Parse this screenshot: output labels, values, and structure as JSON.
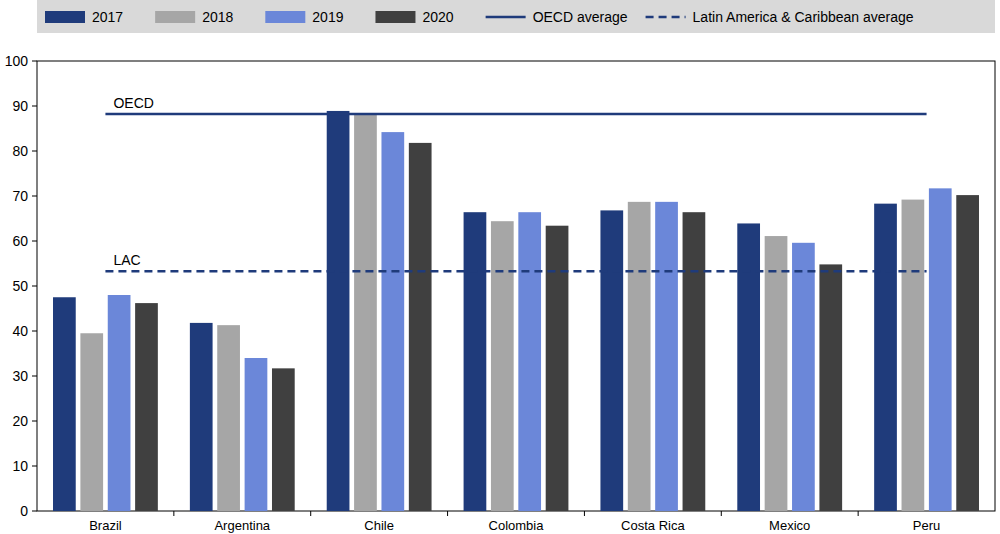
{
  "chart_data": {
    "type": "bar",
    "categories": [
      "Brazil",
      "Argentina",
      "Chile",
      "Colombia",
      "Costa Rica",
      "Mexico",
      "Peru"
    ],
    "series": [
      {
        "name": "2017",
        "color": "#1f3b7b",
        "values": [
          47.5,
          41.8,
          88.9,
          66.4,
          66.8,
          63.9,
          68.3
        ]
      },
      {
        "name": "2018",
        "color": "#a6a6a6",
        "values": [
          39.5,
          41.3,
          88.3,
          64.4,
          68.7,
          61.1,
          69.2
        ]
      },
      {
        "name": "2019",
        "color": "#6b87d9",
        "values": [
          48.0,
          34.0,
          84.2,
          66.4,
          68.7,
          59.6,
          71.7
        ]
      },
      {
        "name": "2020",
        "color": "#404040",
        "values": [
          46.2,
          31.7,
          81.8,
          63.4,
          66.4,
          54.8,
          70.2
        ]
      },
      {
        "name": "OECD average",
        "type": "line",
        "line_style": "solid",
        "color": "#1f3b7b",
        "label": "OECD",
        "values": [
          88.2,
          88.2,
          88.2,
          88.2,
          88.2,
          88.2,
          88.2
        ]
      },
      {
        "name": "Latin America & Caribbean average",
        "type": "line",
        "line_style": "dashed",
        "color": "#1f3b7b",
        "label": "LAC",
        "values": [
          53.3,
          53.3,
          53.3,
          53.3,
          53.3,
          53.3,
          53.3
        ]
      }
    ],
    "ylim": [
      0,
      100
    ],
    "yticks": [
      0,
      10,
      20,
      30,
      40,
      50,
      60,
      70,
      80,
      90,
      100
    ],
    "grid": false,
    "legend": "top"
  }
}
